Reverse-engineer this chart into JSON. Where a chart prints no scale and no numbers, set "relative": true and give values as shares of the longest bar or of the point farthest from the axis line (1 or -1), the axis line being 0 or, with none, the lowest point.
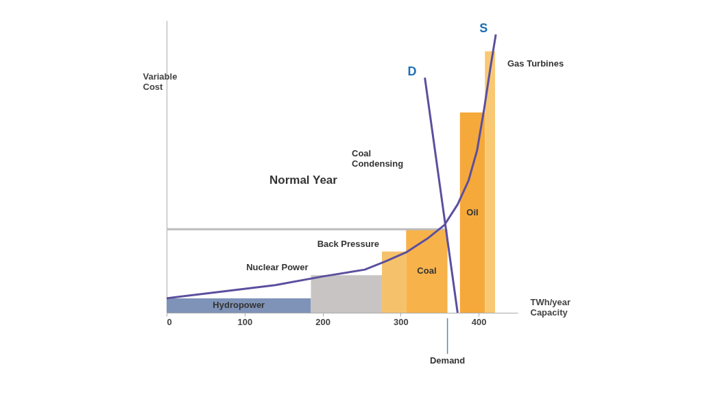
{
  "chart_data": {
    "type": "histogram",
    "title": "Normal Year",
    "xlabel": "TWh/year Capacity",
    "ylabel": "Variable Cost",
    "relative": true,
    "bins": [
      0,
      185,
      276,
      307,
      360,
      376,
      408,
      421
    ],
    "categories": [
      "Hydropower",
      "Nuclear Power",
      "Back Pressure",
      "Coal",
      null,
      "Oil",
      "Gas Turbines"
    ],
    "values": [
      0.052,
      0.135,
      0.22,
      0.3,
      null,
      0.72,
      0.94
    ],
    "colors": [
      "#7f93b8",
      "#c8c4c4",
      "#f5c26b",
      "#f7b24a",
      null,
      "#f5a93a",
      "#f9c873"
    ],
    "xlim": [
      0,
      450
    ],
    "xticks": [
      0,
      100,
      200,
      300,
      400
    ],
    "grid": false,
    "series": [
      {
        "type": "line",
        "color": "#bdbdbd",
        "line_style": "solid",
        "x": [
          0,
          356
        ],
        "values": [
          0.3,
          0.3
        ]
      },
      {
        "type": "line",
        "name": "S",
        "color": "#5b4f9e",
        "line_style": "solid",
        "x": [
          0,
          50,
          139,
          201,
          254,
          281,
          307,
          334,
          356,
          373,
          387,
          398,
          407,
          415,
          422
        ],
        "values": [
          0.052,
          0.069,
          0.099,
          0.131,
          0.155,
          0.185,
          0.217,
          0.266,
          0.315,
          0.389,
          0.475,
          0.584,
          0.732,
          0.88,
          1
        ]
      },
      {
        "type": "line",
        "name": "D",
        "color": "#5b4f9e",
        "line_style": "solid",
        "x": [
          331,
          373
        ],
        "values": [
          0.845,
          0
        ]
      }
    ],
    "ref_lines": [
      {
        "axis": "x",
        "value": 360,
        "label": "Demand"
      }
    ],
    "annotations": [
      "Coal Condensing"
    ]
  }
}
